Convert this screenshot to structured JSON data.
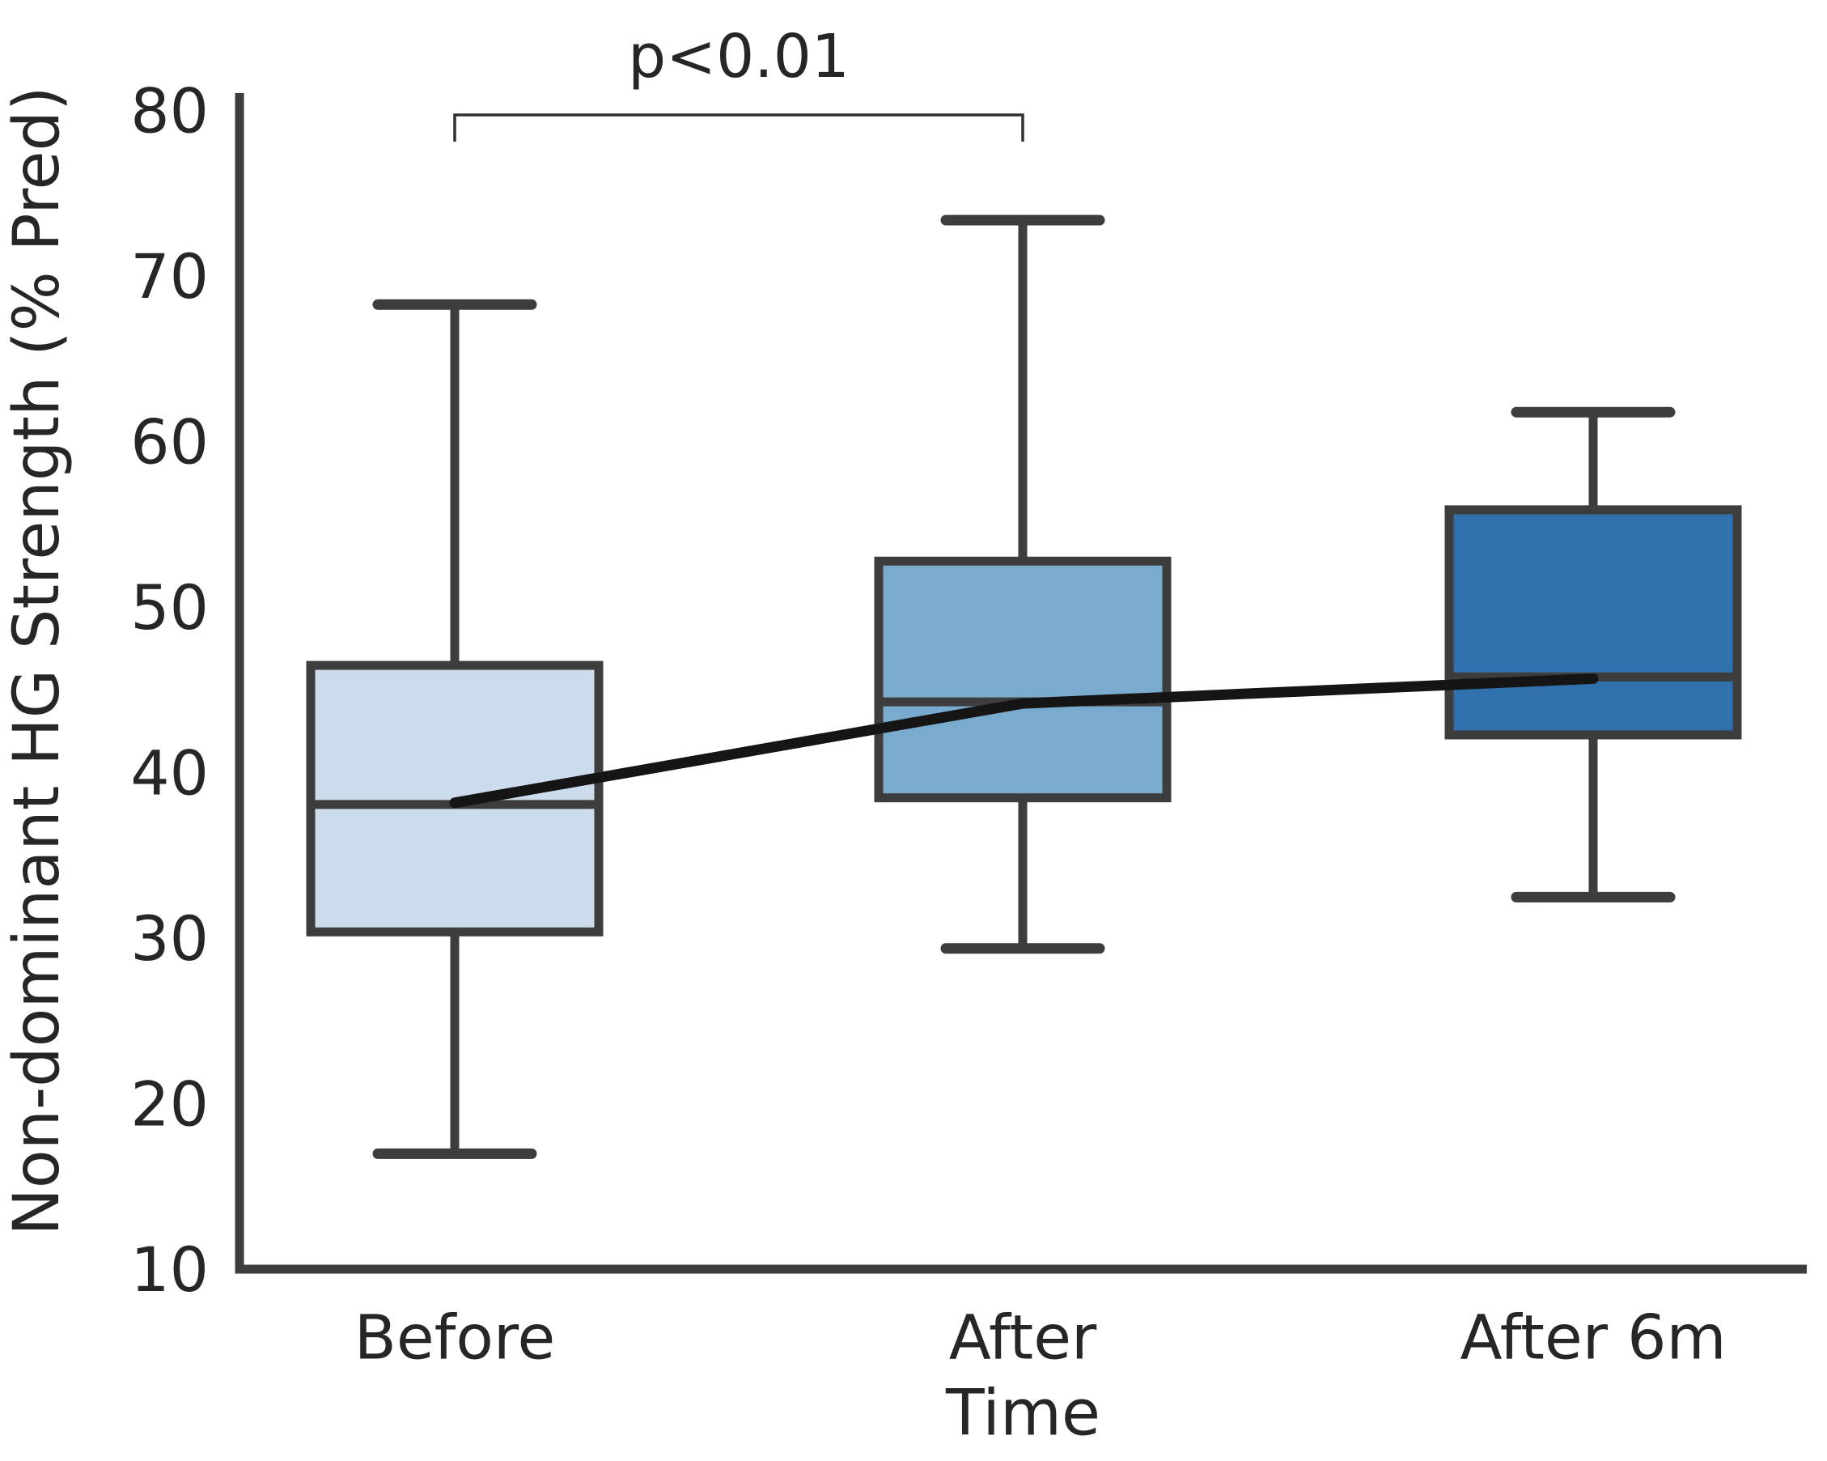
{
  "chart_data": {
    "type": "boxplot",
    "title": "",
    "xlabel": "Time",
    "ylabel": "Non-dominant HG Strength (% Pred)",
    "ylim": [
      10,
      80
    ],
    "yticks": [
      10,
      20,
      30,
      40,
      50,
      60,
      70,
      80
    ],
    "categories": [
      "Before",
      "After",
      "After 6m"
    ],
    "grid": "off",
    "legend": "none",
    "boxes": [
      {
        "label": "Before",
        "whisker_low": 17.0,
        "q1": 30.4,
        "median": 38.1,
        "q3": 46.5,
        "whisker_high": 68.3,
        "fill": "#cddcec"
      },
      {
        "label": "After",
        "whisker_low": 29.4,
        "q1": 38.5,
        "median": 44.3,
        "q3": 52.8,
        "whisker_high": 73.4,
        "fill": "#79abce"
      },
      {
        "label": "After 6m",
        "whisker_low": 32.5,
        "q1": 42.3,
        "median": 45.8,
        "q3": 55.9,
        "whisker_high": 61.8,
        "fill": "#2f70ad"
      }
    ],
    "trend_line": {
      "description": "black line connecting group means across the three boxes",
      "values": [
        38.2,
        44.2,
        45.7
      ],
      "color": "#151515"
    },
    "significance": {
      "label": "p<0.01",
      "from": "Before",
      "to": "After",
      "bracket_color": "#303030"
    },
    "colors": {
      "box_edge": "#3d3d3d",
      "whisker": "#3d3d3d",
      "axis": "#3d3d3d",
      "text": "#262626"
    }
  }
}
